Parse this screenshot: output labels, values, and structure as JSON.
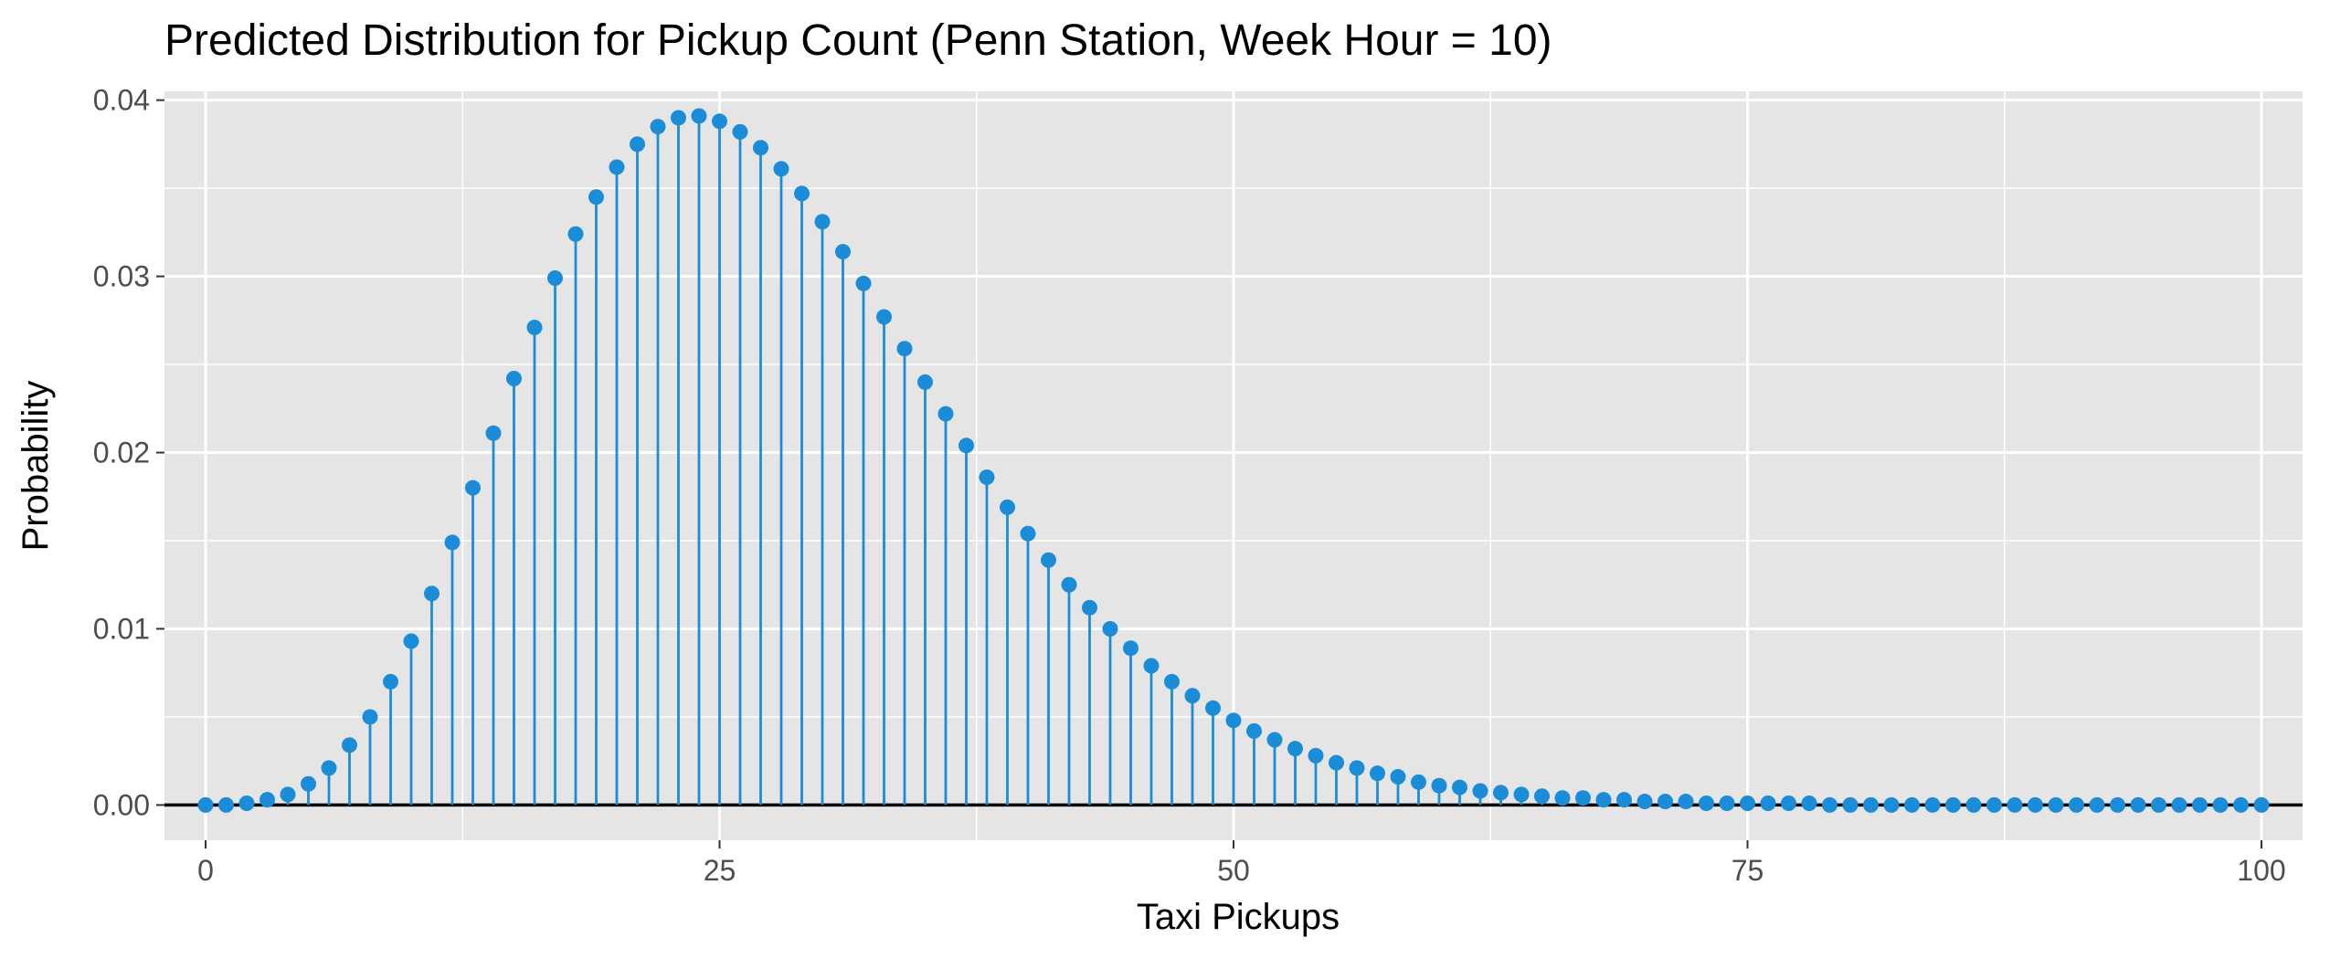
{
  "chart_data": {
    "type": "lollipop",
    "title": "Predicted Distribution for Pickup Count (Penn Station, Week Hour = 10)",
    "xlabel": "Taxi Pickups",
    "ylabel": "Probability",
    "xlim": [
      -2,
      102
    ],
    "ylim": [
      -0.002,
      0.0405
    ],
    "x_ticks": [
      0,
      25,
      50,
      75,
      100
    ],
    "x_tick_labels": [
      "0",
      "25",
      "50",
      "75",
      "100"
    ],
    "y_ticks": [
      0,
      0.01,
      0.02,
      0.03,
      0.04
    ],
    "y_tick_labels": [
      "0.00",
      "0.01",
      "0.02",
      "0.03",
      "0.04"
    ],
    "grid": true,
    "legend": "none",
    "baseline": {
      "y": 0,
      "x_range": [
        -2,
        102
      ]
    },
    "colors": {
      "point": "#1a8cd8",
      "stem": "#1a8cd8",
      "baseline": "#000000",
      "panel": "#e5e5e5",
      "grid": "#ffffff"
    },
    "series": [
      {
        "x": [
          0,
          1,
          2,
          3,
          4,
          5,
          6,
          7,
          8,
          9,
          10,
          11,
          12,
          13,
          14,
          15,
          16,
          17,
          18,
          19,
          20,
          21,
          22,
          23,
          24,
          25,
          26,
          27,
          28,
          29,
          30,
          31,
          32,
          33,
          34,
          35,
          36,
          37,
          38,
          39,
          40,
          41,
          42,
          43,
          44,
          45,
          46,
          47,
          48,
          49,
          50,
          51,
          52,
          53,
          54,
          55,
          56,
          57,
          58,
          59,
          60,
          61,
          62,
          63,
          64,
          65,
          66,
          67,
          68,
          69,
          70,
          71,
          72,
          73,
          74,
          75,
          76,
          77,
          78,
          79,
          80,
          81,
          82,
          83,
          84,
          85,
          86,
          87,
          88,
          89,
          90,
          91,
          92,
          93,
          94,
          95,
          96,
          97,
          98,
          99,
          100
        ],
        "y": [
          0.0,
          0.0,
          0.0001,
          0.0003,
          0.0006,
          0.0012,
          0.0021,
          0.0034,
          0.005,
          0.007,
          0.0093,
          0.012,
          0.0149,
          0.018,
          0.0211,
          0.0242,
          0.0271,
          0.0299,
          0.0324,
          0.0345,
          0.0362,
          0.0375,
          0.0385,
          0.039,
          0.0391,
          0.0388,
          0.0382,
          0.0373,
          0.0361,
          0.0347,
          0.0331,
          0.0314,
          0.0296,
          0.0277,
          0.0259,
          0.024,
          0.0222,
          0.0204,
          0.0186,
          0.0169,
          0.0154,
          0.0139,
          0.0125,
          0.0112,
          0.01,
          0.0089,
          0.0079,
          0.007,
          0.0062,
          0.0055,
          0.0048,
          0.0042,
          0.0037,
          0.0032,
          0.0028,
          0.0024,
          0.0021,
          0.0018,
          0.0016,
          0.0013,
          0.0011,
          0.001,
          0.0008,
          0.0007,
          0.0006,
          0.0005,
          0.0004,
          0.0004,
          0.0003,
          0.0003,
          0.0002,
          0.0002,
          0.0002,
          0.0001,
          0.0001,
          0.0001,
          0.0001,
          0.0001,
          0.0001,
          0.0,
          0.0,
          0.0,
          0.0,
          0.0,
          0.0,
          0.0,
          0.0,
          0.0,
          0.0,
          0.0,
          0.0,
          0.0,
          0.0,
          0.0,
          0.0,
          0.0,
          0.0,
          0.0,
          0.0,
          0.0,
          0.0
        ]
      }
    ]
  }
}
